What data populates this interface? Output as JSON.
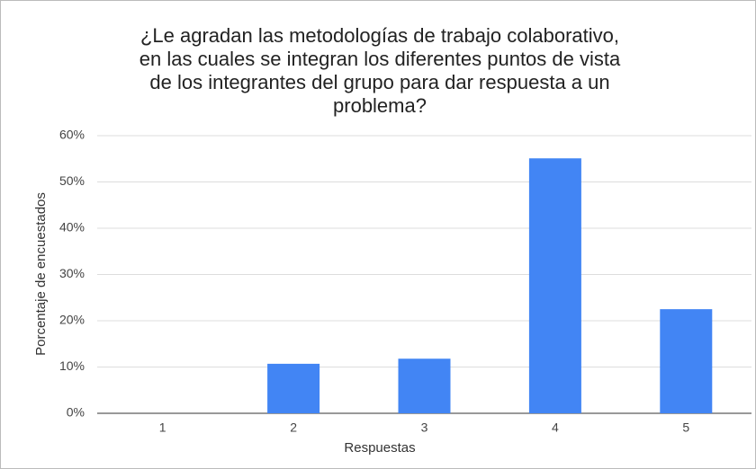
{
  "chart_data": {
    "type": "bar",
    "title": [
      "¿Le agradan las metodologías de trabajo colaborativo,",
      "en las cuales se integran los diferentes puntos de vista",
      "de los integrantes del grupo para dar respuesta a un",
      "problema?"
    ],
    "x_label": "Respuestas",
    "y_label": "Porcentaje de encuestados",
    "categories": [
      "1",
      "2",
      "3",
      "4",
      "5"
    ],
    "values": [
      0,
      10.7,
      11.8,
      55.1,
      22.5
    ],
    "color": "#4285f4",
    "ylim": [
      0,
      60
    ],
    "yticks": [
      {
        "value": 0,
        "label": "0%"
      },
      {
        "value": 10,
        "label": "10%"
      },
      {
        "value": 20,
        "label": "20%"
      },
      {
        "value": 30,
        "label": "30%"
      },
      {
        "value": 40,
        "label": "40%"
      },
      {
        "value": 50,
        "label": "50%"
      },
      {
        "value": 60,
        "label": "60%"
      }
    ],
    "grid": true
  }
}
